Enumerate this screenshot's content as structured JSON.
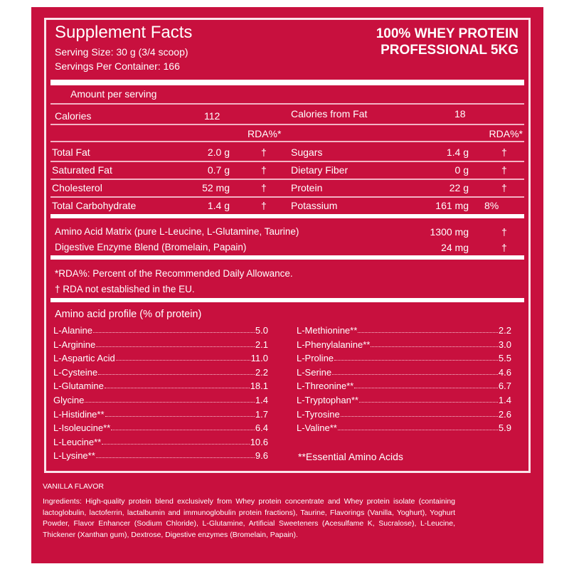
{
  "header": {
    "title": "Supplement Facts",
    "serving_size": "Serving Size: 30 g (3/4 scoop)",
    "servings": "Servings Per Container: 166",
    "product_line1": "100% WHEY PROTEIN",
    "product_line2": "PROFESSIONAL 5KG"
  },
  "amount_label": "Amount per serving",
  "calories": {
    "label": "Calories",
    "value": "112",
    "fat_label": "Calories from Fat",
    "fat_value": "18"
  },
  "rda_header": "RDA%*",
  "left_rows": [
    {
      "label": "Total Fat",
      "value": "2.0 g",
      "rda": "†"
    },
    {
      "label": "Saturated Fat",
      "value": "0.7 g",
      "rda": "†"
    },
    {
      "label": "Cholesterol",
      "value": "52 mg",
      "rda": "†"
    },
    {
      "label": "Total Carbohydrate",
      "value": "1.4 g",
      "rda": "†"
    }
  ],
  "right_rows": [
    {
      "label": "Sugars",
      "value": "1.4 g",
      "rda": "†"
    },
    {
      "label": "Dietary Fiber",
      "value": "0 g",
      "rda": "†"
    },
    {
      "label": "Protein",
      "value": "22 g",
      "rda": "†"
    },
    {
      "label": "Potassium",
      "value": "161 mg",
      "rda": "8%"
    }
  ],
  "blends": [
    {
      "label": "Amino Acid Matrix (pure L-Leucine, L-Glutamine, Taurine)",
      "value": "1300 mg",
      "rda": "†"
    },
    {
      "label": "Digestive Enzyme Blend (Bromelain, Papain)",
      "value": "24 mg",
      "rda": "†"
    }
  ],
  "notes": [
    "*RDA%: Percent of the Recommended Daily Allowance.",
    "† RDA not established in the EU."
  ],
  "amino": {
    "title": "Amino acid profile (% of protein)",
    "left": [
      [
        "L-Alanine",
        "5.0"
      ],
      [
        "L-Arginine",
        "2.1"
      ],
      [
        "L-Aspartic Acid",
        "11.0"
      ],
      [
        "L-Cysteine",
        "2.2"
      ],
      [
        "L-Glutamine",
        "18.1"
      ],
      [
        "Glycine",
        "1.4"
      ],
      [
        "L-Histidine**",
        "1.7"
      ],
      [
        "L-Isoleucine**",
        "6.4"
      ],
      [
        "L-Leucine**",
        "10.6"
      ],
      [
        "L-Lysine**",
        "9.6"
      ]
    ],
    "right": [
      [
        "L-Methionine**",
        "2.2"
      ],
      [
        "L-Phenylalanine**",
        "3.0"
      ],
      [
        "L-Proline",
        "5.5"
      ],
      [
        "L-Serine",
        "4.6"
      ],
      [
        "L-Threonine**",
        "6.7"
      ],
      [
        "L-Tryptophan**",
        "1.4"
      ],
      [
        "L-Tyrosine",
        "2.6"
      ],
      [
        "L-Valine**",
        "5.9"
      ]
    ],
    "footnote": "**Essential Amino Acids"
  },
  "flavor": "VANILLA FLAVOR",
  "ingredients": "Ingredients: High-quality protein blend exclusively from Whey protein concentrate and Whey protein isolate (containing lactoglobulin, lactoferrin, lactalbumin and immunoglobulin protein fractions), Taurine, Flavorings (Vanilla, Yoghurt), Yoghurt Powder, Flavor Enhancer (Sodium Chloride), L-Glutamine, Artificial Sweeteners (Acesulfame K, Sucralose), L-Leucine, Thickener (Xanthan gum), Dextrose, Digestive enzymes (Bromelain, Papain)."
}
